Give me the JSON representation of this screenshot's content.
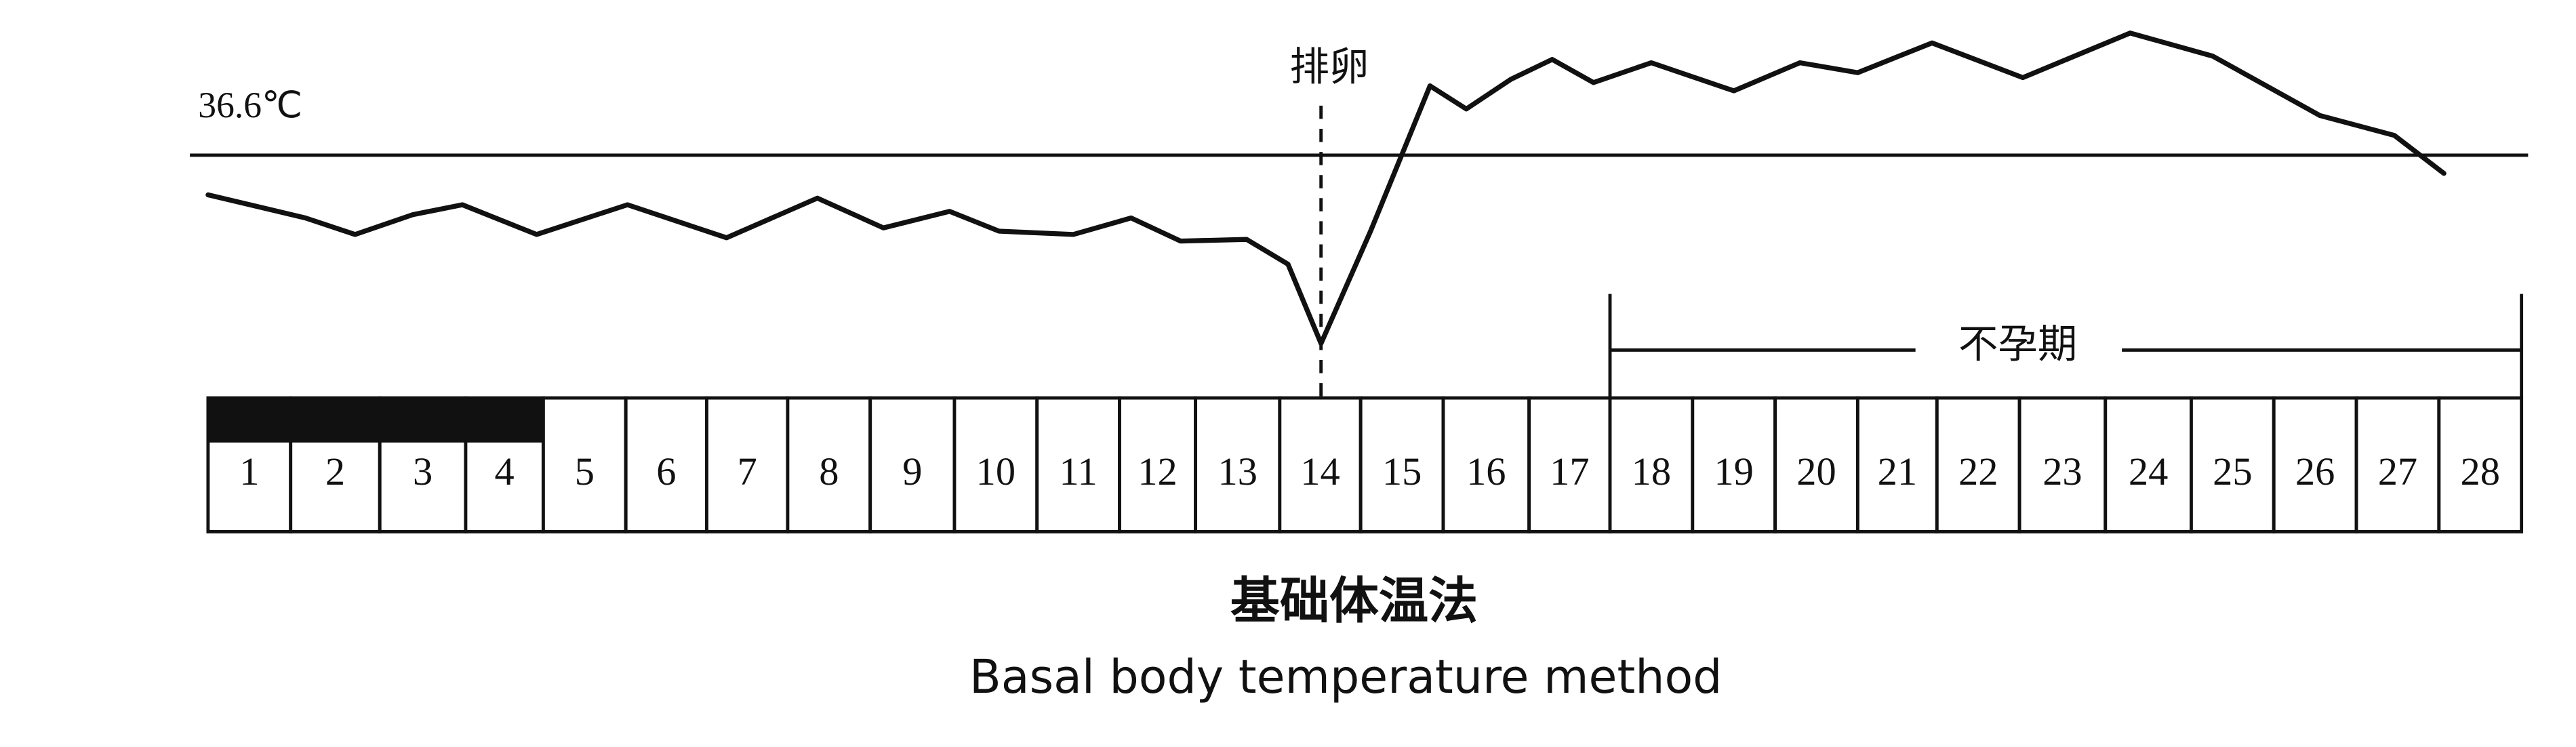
{
  "reference": {
    "label": "36.6℃"
  },
  "ovulation": {
    "label": "排卵"
  },
  "infertile_period": {
    "label": "不孕期"
  },
  "days": [
    1,
    2,
    3,
    4,
    5,
    6,
    7,
    8,
    9,
    10,
    11,
    12,
    13,
    14,
    15,
    16,
    17,
    18,
    19,
    20,
    21,
    22,
    23,
    24,
    25,
    26,
    27,
    28
  ],
  "caption": {
    "title": "基础体温法",
    "subtitle": "Basal body temperature method"
  }
}
